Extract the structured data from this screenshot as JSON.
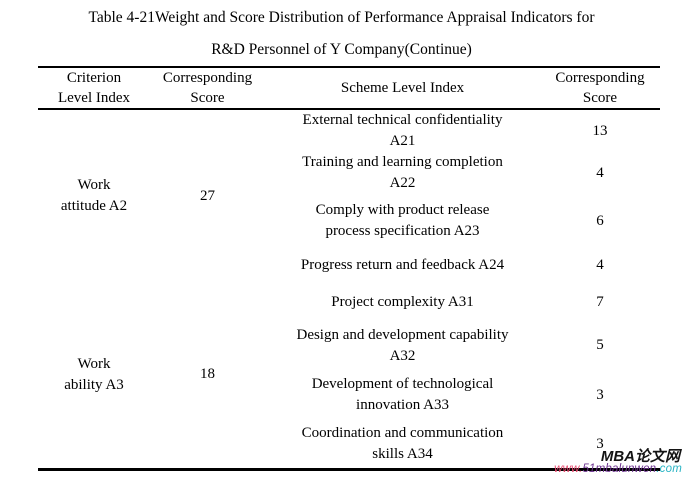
{
  "document": {
    "title_line1": "Table 4-21Weight and Score Distribution of Performance Appraisal Indicators for",
    "title_line2": "R&D Personnel of Y Company(Continue)"
  },
  "table": {
    "headers": [
      {
        "lines": [
          "Criterion",
          "Level Index"
        ]
      },
      {
        "lines": [
          "Corresponding",
          "Score"
        ]
      },
      {
        "lines": [
          "Scheme Level Index"
        ]
      },
      {
        "lines": [
          "Corresponding",
          "Score"
        ]
      }
    ],
    "groups": [
      {
        "criterion_lines": [
          "Work",
          "attitude A2"
        ],
        "criterion_score": "27",
        "rows": [
          {
            "scheme": [
              "External technical confidentiality",
              "A21"
            ],
            "score": "13"
          },
          {
            "scheme": [
              "Training and learning completion",
              "A22"
            ],
            "score": "4"
          },
          {
            "scheme": [
              "Comply with product release",
              "process specification A23"
            ],
            "score": "6"
          },
          {
            "scheme": [
              "Progress return and feedback A24"
            ],
            "score": "4"
          }
        ]
      },
      {
        "criterion_lines": [
          "Work",
          "ability A3"
        ],
        "criterion_score": "18",
        "rows": [
          {
            "scheme": [
              "Project complexity A31"
            ],
            "score": "7"
          },
          {
            "scheme": [
              "Design and development capability",
              "A32"
            ],
            "score": "5"
          },
          {
            "scheme": [
              "Development of technological",
              "innovation A33"
            ],
            "score": "3"
          },
          {
            "scheme": [
              "Coordination and communication",
              "skills A34"
            ],
            "score": "3"
          }
        ]
      }
    ]
  },
  "watermark": {
    "site_name": "MBA论文网",
    "url_www": "www.",
    "url_domain": "51mbalunwen",
    "url_tld": ".com",
    "colors": {
      "site_name": "#141414",
      "url_www": "#e8486e",
      "url_domain": "#6d3390",
      "url_tld": "#2ab4c4"
    }
  }
}
